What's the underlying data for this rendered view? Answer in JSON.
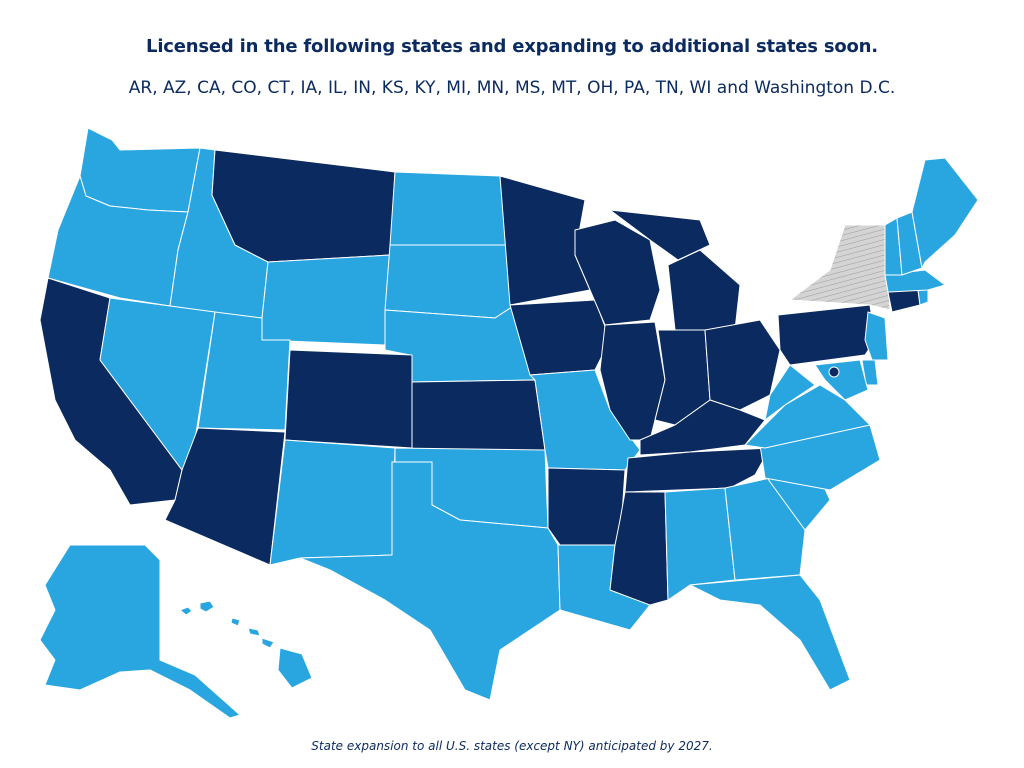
{
  "header": {
    "title": "Licensed in the following states and expanding to additional states soon.",
    "states_line": "AR, AZ, CA, CO, CT, IA, IL, IN, KS, KY, MI, MN, MS, MT, OH, PA, TN, WI and Washington D.C."
  },
  "footnote": "State expansion to all U.S. states (except NY) anticipated by 2027.",
  "colors": {
    "licensed": "#0b2a5f",
    "expanding": "#29a6e0",
    "excluded": "#d4d4d4",
    "border": "#ffffff"
  },
  "legend_status": {
    "licensed": [
      "AR",
      "AZ",
      "CA",
      "CO",
      "CT",
      "IA",
      "IL",
      "IN",
      "KS",
      "KY",
      "MI",
      "MN",
      "MS",
      "MT",
      "OH",
      "PA",
      "TN",
      "WI",
      "DC"
    ],
    "excluded": [
      "NY"
    ]
  }
}
